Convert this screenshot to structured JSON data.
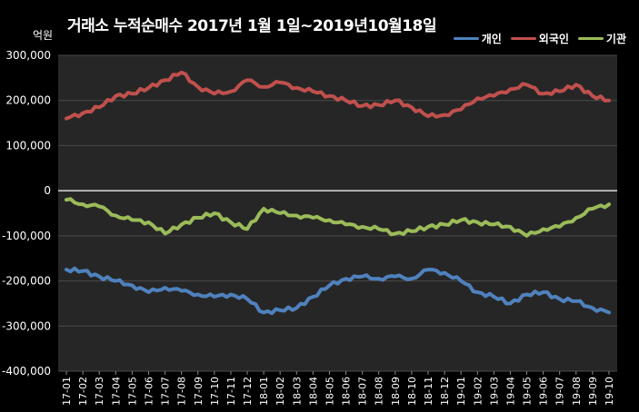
{
  "title": "거래소 누적순매수 2017년 1월 1일~2019년10월18일",
  "unit_label": "억원",
  "chart_data": {
    "type": "line",
    "grid": true,
    "legend_position": "top-right",
    "ylim": [
      -400000,
      300000
    ],
    "y_ticks": [
      300000,
      200000,
      100000,
      0,
      -100000,
      -200000,
      -300000,
      -400000
    ],
    "y_tick_labels": [
      "300,000",
      "200,000",
      "100,000",
      "0",
      "-100,000",
      "-200,000",
      "-300,000",
      "-400,000"
    ],
    "categories": [
      "17-01",
      "17-02",
      "17-03",
      "17-04",
      "17-05",
      "17-06",
      "17-07",
      "17-08",
      "17-09",
      "17-10",
      "17-11",
      "17-12",
      "18-01",
      "18-02",
      "18-03",
      "18-04",
      "18-05",
      "18-06",
      "18-07",
      "18-08",
      "18-09",
      "18-10",
      "18-11",
      "18-12",
      "19-01",
      "19-02",
      "19-03",
      "19-04",
      "19-05",
      "19-06",
      "19-07",
      "19-08",
      "19-09",
      "19-10"
    ],
    "series": [
      {
        "name": "개인",
        "color": "#4f81bd",
        "values": [
          -175000,
          -178000,
          -190000,
          -200000,
          -210000,
          -225000,
          -215000,
          -222000,
          -230000,
          -235000,
          -230000,
          -240000,
          -270000,
          -265000,
          -260000,
          -235000,
          -210000,
          -195000,
          -190000,
          -195000,
          -190000,
          -195000,
          -175000,
          -182000,
          -200000,
          -225000,
          -235000,
          -250000,
          -230000,
          -225000,
          -240000,
          -245000,
          -260000,
          -270000
        ]
      },
      {
        "name": "외국인",
        "color": "#c0504d",
        "values": [
          160000,
          172000,
          185000,
          210000,
          215000,
          228000,
          245000,
          262000,
          230000,
          215000,
          220000,
          245000,
          230000,
          240000,
          228000,
          220000,
          210000,
          200000,
          188000,
          190000,
          200000,
          185000,
          165000,
          168000,
          180000,
          205000,
          210000,
          225000,
          235000,
          215000,
          220000,
          235000,
          210000,
          200000
        ]
      },
      {
        "name": "기관",
        "color": "#9bbb59",
        "values": [
          -20000,
          -30000,
          -35000,
          -55000,
          -65000,
          -70000,
          -95000,
          -75000,
          -60000,
          -50000,
          -70000,
          -85000,
          -40000,
          -50000,
          -55000,
          -60000,
          -65000,
          -75000,
          -80000,
          -85000,
          -95000,
          -90000,
          -80000,
          -75000,
          -65000,
          -70000,
          -75000,
          -80000,
          -100000,
          -85000,
          -80000,
          -60000,
          -40000,
          -30000
        ]
      }
    ]
  }
}
